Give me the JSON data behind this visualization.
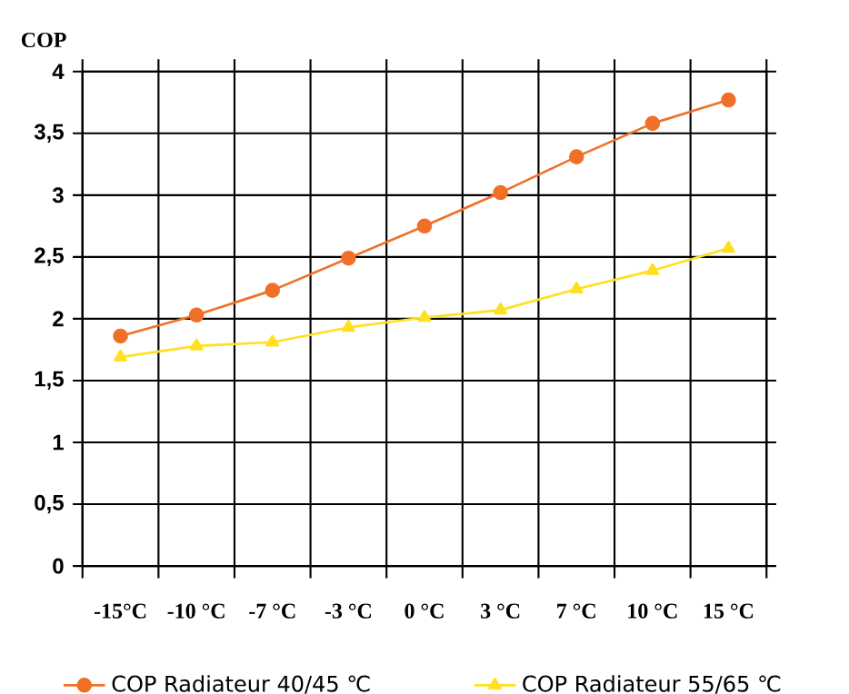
{
  "chart_data": {
    "type": "line",
    "ylabel": "COP",
    "categories": [
      "-15°C",
      "-10 °C",
      "-7 °C",
      "-3 °C",
      "0 °C",
      "3 °C",
      "7 °C",
      "10 °C",
      "15 °C"
    ],
    "series": [
      {
        "name": "COP Radiateur 40/45 ℃",
        "color": "#f07028",
        "marker": "circle",
        "values": [
          1.86,
          2.03,
          2.23,
          2.49,
          2.75,
          3.02,
          3.31,
          3.58,
          3.77
        ]
      },
      {
        "name": "COP Radiateur 55/65 ℃",
        "color": "#ffe020",
        "marker": "triangle",
        "values": [
          1.69,
          1.78,
          1.81,
          1.93,
          2.01,
          2.07,
          2.24,
          2.39,
          2.57
        ]
      }
    ],
    "ylim": [
      0,
      4
    ],
    "yticks": [
      0,
      {
        "value": 0.5,
        "label": "0,5"
      },
      1,
      {
        "value": 1.5,
        "label": "1,5"
      },
      2,
      {
        "value": 2.5,
        "label": "2,5"
      },
      3,
      {
        "value": 3.5,
        "label": "3,5"
      },
      4
    ],
    "grid": true,
    "legend": "bottom"
  }
}
